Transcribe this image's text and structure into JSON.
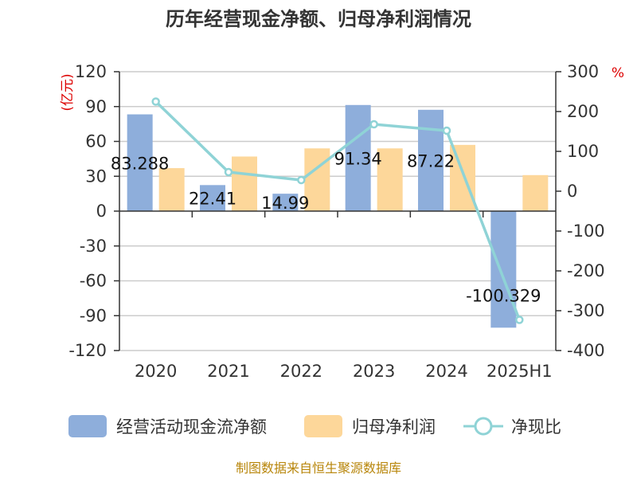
{
  "title": "历年经营现金净额、归母净利润情况",
  "source": "制图数据来自恒生聚源数据库",
  "chart_data": {
    "type": "bar",
    "categories": [
      "2020",
      "2021",
      "2022",
      "2023",
      "2024",
      "2025H1"
    ],
    "left_axis": {
      "unit": "(亿元)",
      "ylim": [
        -120,
        120
      ],
      "ticks": [
        "120",
        "90",
        "60",
        "30",
        "0",
        "-30",
        "-60",
        "-90",
        "-120"
      ]
    },
    "right_axis": {
      "unit": "%",
      "ylim": [
        -400,
        300
      ],
      "ticks": [
        "300",
        "200",
        "100",
        "0",
        "-100",
        "-200",
        "-300",
        "-400"
      ]
    },
    "series": [
      {
        "name": "经营活动现金流净额",
        "type": "bar",
        "axis": "left",
        "color": "#8eaedb",
        "values": [
          83.288,
          22.41,
          14.99,
          91.34,
          87.22,
          -100.329
        ],
        "labels": [
          "83.288",
          "22.41",
          "14.99",
          "91.34",
          "87.22",
          "-100.329"
        ]
      },
      {
        "name": "归母净利润",
        "type": "bar",
        "axis": "left",
        "color": "#fdd79a",
        "values": [
          37.0,
          47.0,
          54.0,
          54.0,
          57.0,
          31.0
        ]
      },
      {
        "name": "净现比",
        "type": "line",
        "axis": "right",
        "color": "#8fd3d6",
        "values": [
          225,
          48,
          28,
          168,
          152,
          -323
        ]
      }
    ],
    "grid": true,
    "legend_position": "bottom"
  }
}
